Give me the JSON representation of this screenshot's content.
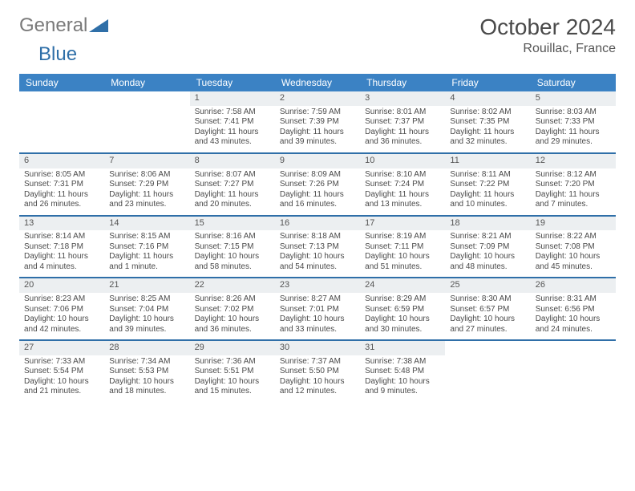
{
  "brand": {
    "part1": "General",
    "part2": "Blue"
  },
  "title": "October 2024",
  "location": "Rouillac, France",
  "colors": {
    "header_bg": "#3b82c4",
    "rule": "#2f6fa8",
    "daynum_bg": "#eceff1",
    "text": "#4a4a4a",
    "brand_gray": "#7a7a7a",
    "brand_blue": "#2f6fa8"
  },
  "day_headers": [
    "Sunday",
    "Monday",
    "Tuesday",
    "Wednesday",
    "Thursday",
    "Friday",
    "Saturday"
  ],
  "layout": {
    "cols": 7,
    "rows": 5,
    "cell_font_size": 10
  },
  "weeks": [
    [
      null,
      null,
      {
        "n": "1",
        "sunrise": "7:58 AM",
        "sunset": "7:41 PM",
        "daylight": "11 hours and 43 minutes."
      },
      {
        "n": "2",
        "sunrise": "7:59 AM",
        "sunset": "7:39 PM",
        "daylight": "11 hours and 39 minutes."
      },
      {
        "n": "3",
        "sunrise": "8:01 AM",
        "sunset": "7:37 PM",
        "daylight": "11 hours and 36 minutes."
      },
      {
        "n": "4",
        "sunrise": "8:02 AM",
        "sunset": "7:35 PM",
        "daylight": "11 hours and 32 minutes."
      },
      {
        "n": "5",
        "sunrise": "8:03 AM",
        "sunset": "7:33 PM",
        "daylight": "11 hours and 29 minutes."
      }
    ],
    [
      {
        "n": "6",
        "sunrise": "8:05 AM",
        "sunset": "7:31 PM",
        "daylight": "11 hours and 26 minutes."
      },
      {
        "n": "7",
        "sunrise": "8:06 AM",
        "sunset": "7:29 PM",
        "daylight": "11 hours and 23 minutes."
      },
      {
        "n": "8",
        "sunrise": "8:07 AM",
        "sunset": "7:27 PM",
        "daylight": "11 hours and 20 minutes."
      },
      {
        "n": "9",
        "sunrise": "8:09 AM",
        "sunset": "7:26 PM",
        "daylight": "11 hours and 16 minutes."
      },
      {
        "n": "10",
        "sunrise": "8:10 AM",
        "sunset": "7:24 PM",
        "daylight": "11 hours and 13 minutes."
      },
      {
        "n": "11",
        "sunrise": "8:11 AM",
        "sunset": "7:22 PM",
        "daylight": "11 hours and 10 minutes."
      },
      {
        "n": "12",
        "sunrise": "8:12 AM",
        "sunset": "7:20 PM",
        "daylight": "11 hours and 7 minutes."
      }
    ],
    [
      {
        "n": "13",
        "sunrise": "8:14 AM",
        "sunset": "7:18 PM",
        "daylight": "11 hours and 4 minutes."
      },
      {
        "n": "14",
        "sunrise": "8:15 AM",
        "sunset": "7:16 PM",
        "daylight": "11 hours and 1 minute."
      },
      {
        "n": "15",
        "sunrise": "8:16 AM",
        "sunset": "7:15 PM",
        "daylight": "10 hours and 58 minutes."
      },
      {
        "n": "16",
        "sunrise": "8:18 AM",
        "sunset": "7:13 PM",
        "daylight": "10 hours and 54 minutes."
      },
      {
        "n": "17",
        "sunrise": "8:19 AM",
        "sunset": "7:11 PM",
        "daylight": "10 hours and 51 minutes."
      },
      {
        "n": "18",
        "sunrise": "8:21 AM",
        "sunset": "7:09 PM",
        "daylight": "10 hours and 48 minutes."
      },
      {
        "n": "19",
        "sunrise": "8:22 AM",
        "sunset": "7:08 PM",
        "daylight": "10 hours and 45 minutes."
      }
    ],
    [
      {
        "n": "20",
        "sunrise": "8:23 AM",
        "sunset": "7:06 PM",
        "daylight": "10 hours and 42 minutes."
      },
      {
        "n": "21",
        "sunrise": "8:25 AM",
        "sunset": "7:04 PM",
        "daylight": "10 hours and 39 minutes."
      },
      {
        "n": "22",
        "sunrise": "8:26 AM",
        "sunset": "7:02 PM",
        "daylight": "10 hours and 36 minutes."
      },
      {
        "n": "23",
        "sunrise": "8:27 AM",
        "sunset": "7:01 PM",
        "daylight": "10 hours and 33 minutes."
      },
      {
        "n": "24",
        "sunrise": "8:29 AM",
        "sunset": "6:59 PM",
        "daylight": "10 hours and 30 minutes."
      },
      {
        "n": "25",
        "sunrise": "8:30 AM",
        "sunset": "6:57 PM",
        "daylight": "10 hours and 27 minutes."
      },
      {
        "n": "26",
        "sunrise": "8:31 AM",
        "sunset": "6:56 PM",
        "daylight": "10 hours and 24 minutes."
      }
    ],
    [
      {
        "n": "27",
        "sunrise": "7:33 AM",
        "sunset": "5:54 PM",
        "daylight": "10 hours and 21 minutes."
      },
      {
        "n": "28",
        "sunrise": "7:34 AM",
        "sunset": "5:53 PM",
        "daylight": "10 hours and 18 minutes."
      },
      {
        "n": "29",
        "sunrise": "7:36 AM",
        "sunset": "5:51 PM",
        "daylight": "10 hours and 15 minutes."
      },
      {
        "n": "30",
        "sunrise": "7:37 AM",
        "sunset": "5:50 PM",
        "daylight": "10 hours and 12 minutes."
      },
      {
        "n": "31",
        "sunrise": "7:38 AM",
        "sunset": "5:48 PM",
        "daylight": "10 hours and 9 minutes."
      },
      null,
      null
    ]
  ],
  "labels": {
    "sunrise": "Sunrise:",
    "sunset": "Sunset:",
    "daylight": "Daylight:"
  }
}
